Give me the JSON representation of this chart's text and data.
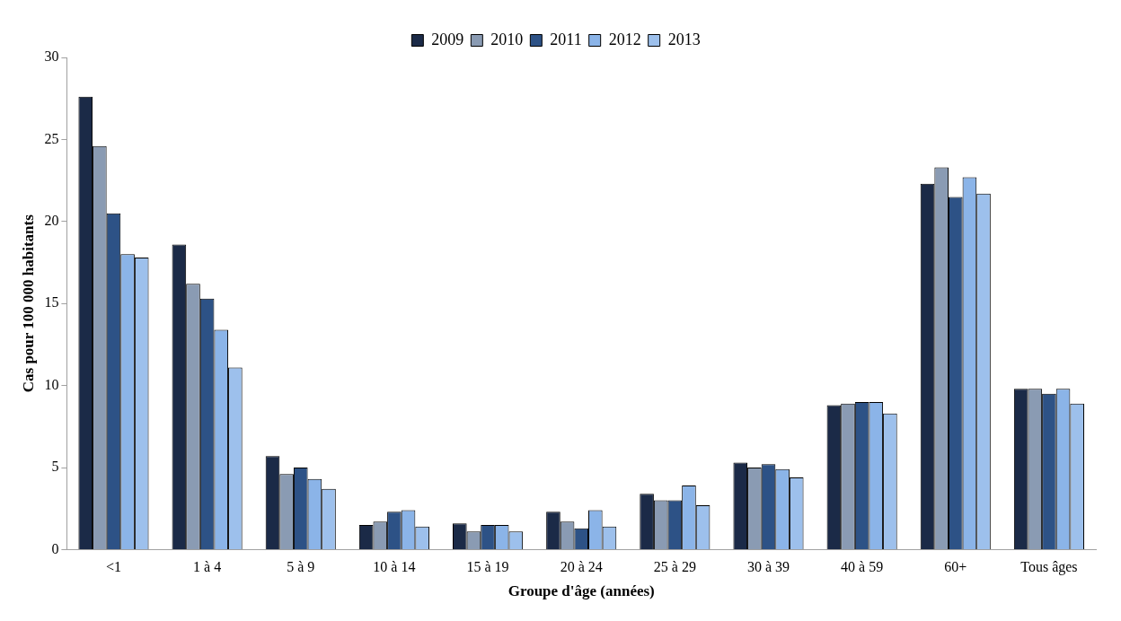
{
  "chart_data": {
    "type": "bar",
    "xlabel": "Groupe d'âge (années)",
    "ylabel": "Cas pour 100 000 habitants",
    "categories": [
      "<1",
      "1 à 4",
      "5 à 9",
      "10 à 14",
      "15 à 19",
      "20 à 24",
      "25 à 29",
      "30 à 39",
      "40 à 59",
      "60+",
      "Tous âges"
    ],
    "series": [
      {
        "name": "2009",
        "color": "#1b2a47",
        "values": [
          27.6,
          18.6,
          5.7,
          1.5,
          1.6,
          2.3,
          3.4,
          5.3,
          8.8,
          22.3,
          9.8
        ]
      },
      {
        "name": "2010",
        "color": "#8a9bb3",
        "values": [
          24.6,
          16.2,
          4.6,
          1.7,
          1.1,
          1.7,
          3.0,
          5.0,
          8.9,
          23.3,
          9.8
        ]
      },
      {
        "name": "2011",
        "color": "#2d5286",
        "values": [
          20.5,
          15.3,
          5.0,
          2.3,
          1.5,
          1.3,
          3.0,
          5.2,
          9.0,
          21.5,
          9.5
        ]
      },
      {
        "name": "2012",
        "color": "#8bb4e8",
        "values": [
          18.0,
          13.4,
          4.3,
          2.4,
          1.5,
          2.4,
          3.9,
          4.9,
          9.0,
          22.7,
          9.8
        ]
      },
      {
        "name": "2013",
        "color": "#9dc0ec",
        "values": [
          17.8,
          11.1,
          3.7,
          1.4,
          1.1,
          1.4,
          2.7,
          4.4,
          8.3,
          21.7,
          8.9
        ]
      }
    ],
    "ylim": [
      0,
      30
    ],
    "yticks": [
      0,
      5,
      10,
      15,
      20,
      25,
      30
    ],
    "grid": false,
    "legend": "top"
  }
}
